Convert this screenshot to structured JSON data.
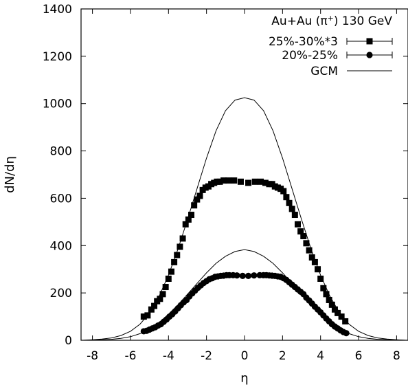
{
  "chart_data": {
    "type": "scatter",
    "title": "",
    "xlabel": "η",
    "ylabel": "dN/dη",
    "xlim": [
      -8.6,
      8.6
    ],
    "ylim": [
      0,
      1400
    ],
    "xticks": [
      "-8",
      "-6",
      "-4",
      "-2",
      "0",
      "2",
      "4",
      "6",
      "8"
    ],
    "yticks": [
      "0",
      "200",
      "400",
      "600",
      "800",
      "1000",
      "1200",
      "1400"
    ],
    "grid": false,
    "legend_position": "top-right",
    "legend_title": {
      "prefix": "Au+Au (π",
      "sup": "+",
      "suffix": ") 130 GeV"
    },
    "series": [
      {
        "name": "25%-30%*3",
        "marker": "square",
        "x": [
          -5.3,
          -5.1,
          -4.9,
          -4.75,
          -4.6,
          -4.45,
          -4.3,
          -4.15,
          -4.0,
          -3.85,
          -3.7,
          -3.55,
          -3.4,
          -3.25,
          -3.1,
          -2.95,
          -2.8,
          -2.65,
          -2.5,
          -2.35,
          -2.2,
          -2.05,
          -1.9,
          -1.75,
          -1.6,
          -1.45,
          -1.3,
          -1.1,
          -0.85,
          -0.55,
          -0.2,
          0.2,
          0.55,
          0.85,
          1.1,
          1.3,
          1.45,
          1.6,
          1.75,
          1.9,
          2.05,
          2.2,
          2.35,
          2.5,
          2.65,
          2.8,
          2.95,
          3.1,
          3.25,
          3.4,
          3.55,
          3.7,
          3.85,
          4.0,
          4.15,
          4.3,
          4.45,
          4.6,
          4.75,
          4.9,
          5.1,
          5.3
        ],
        "y": [
          100,
          105,
          130,
          145,
          165,
          175,
          195,
          225,
          260,
          290,
          330,
          360,
          395,
          430,
          490,
          510,
          530,
          570,
          595,
          610,
          635,
          645,
          650,
          660,
          665,
          670,
          670,
          675,
          675,
          675,
          670,
          665,
          670,
          670,
          665,
          660,
          660,
          650,
          645,
          640,
          630,
          605,
          580,
          555,
          530,
          490,
          460,
          440,
          410,
          380,
          350,
          330,
          300,
          260,
          220,
          195,
          170,
          150,
          130,
          115,
          100,
          80
        ]
      },
      {
        "name": "20%-25%",
        "marker": "circle",
        "x": [
          -5.3,
          -5.15,
          -5.0,
          -4.85,
          -4.7,
          -4.55,
          -4.4,
          -4.25,
          -4.1,
          -3.95,
          -3.8,
          -3.65,
          -3.5,
          -3.35,
          -3.2,
          -3.05,
          -2.9,
          -2.75,
          -2.6,
          -2.45,
          -2.3,
          -2.15,
          -2.0,
          -1.85,
          -1.7,
          -1.55,
          -1.4,
          -1.25,
          -1.1,
          -0.95,
          -0.8,
          -0.6,
          -0.4,
          -0.1,
          0.2,
          0.5,
          0.8,
          1.0,
          1.15,
          1.3,
          1.45,
          1.6,
          1.75,
          1.9,
          2.05,
          2.2,
          2.35,
          2.5,
          2.65,
          2.8,
          2.95,
          3.1,
          3.25,
          3.4,
          3.55,
          3.7,
          3.85,
          4.0,
          4.15,
          4.3,
          4.45,
          4.6,
          4.75,
          4.9,
          5.05,
          5.2,
          5.35
        ],
        "y": [
          38,
          40,
          45,
          50,
          55,
          62,
          68,
          78,
          88,
          100,
          110,
          122,
          135,
          148,
          160,
          170,
          185,
          198,
          210,
          222,
          232,
          242,
          250,
          258,
          262,
          268,
          270,
          272,
          273,
          275,
          275,
          275,
          274,
          272,
          272,
          274,
          275,
          275,
          275,
          274,
          273,
          272,
          270,
          268,
          262,
          255,
          245,
          235,
          225,
          215,
          205,
          195,
          180,
          168,
          155,
          142,
          130,
          118,
          105,
          92,
          80,
          68,
          58,
          50,
          42,
          35,
          30
        ]
      },
      {
        "name": "GCM",
        "marker": "line",
        "curves": [
          {
            "x": [
              -8.5,
              -8,
              -7.5,
              -7,
              -6.5,
              -6,
              -5.5,
              -5,
              -4.5,
              -4,
              -3.5,
              -3,
              -2.5,
              -2,
              -1.5,
              -1,
              -0.5,
              0,
              0.5,
              1,
              1.5,
              2,
              2.5,
              3,
              3.5,
              4,
              4.5,
              5,
              5.5,
              6,
              6.5,
              7,
              7.5,
              8,
              8.5
            ],
            "y": [
              0,
              2,
              5,
              10,
              20,
              38,
              68,
              115,
              185,
              275,
              385,
              510,
              640,
              770,
              885,
              970,
              1015,
              1025,
              1015,
              970,
              885,
              770,
              640,
              510,
              385,
              275,
              185,
              115,
              68,
              38,
              20,
              10,
              5,
              2,
              0
            ]
          },
          {
            "x": [
              -8.5,
              -8,
              -7.5,
              -7,
              -6.5,
              -6,
              -5.5,
              -5,
              -4.5,
              -4,
              -3.5,
              -3,
              -2.5,
              -2,
              -1.5,
              -1,
              -0.5,
              0,
              0.5,
              1,
              1.5,
              2,
              2.5,
              3,
              3.5,
              4,
              4.5,
              5,
              5.5,
              6,
              6.5,
              7,
              7.5,
              8,
              8.5
            ],
            "y": [
              0,
              1,
              2,
              4,
              8,
              15,
              28,
              48,
              75,
              110,
              150,
              195,
              240,
              285,
              325,
              355,
              375,
              383,
              375,
              355,
              325,
              285,
              240,
              195,
              150,
              110,
              75,
              48,
              28,
              15,
              8,
              4,
              2,
              1,
              0
            ]
          }
        ]
      }
    ]
  }
}
